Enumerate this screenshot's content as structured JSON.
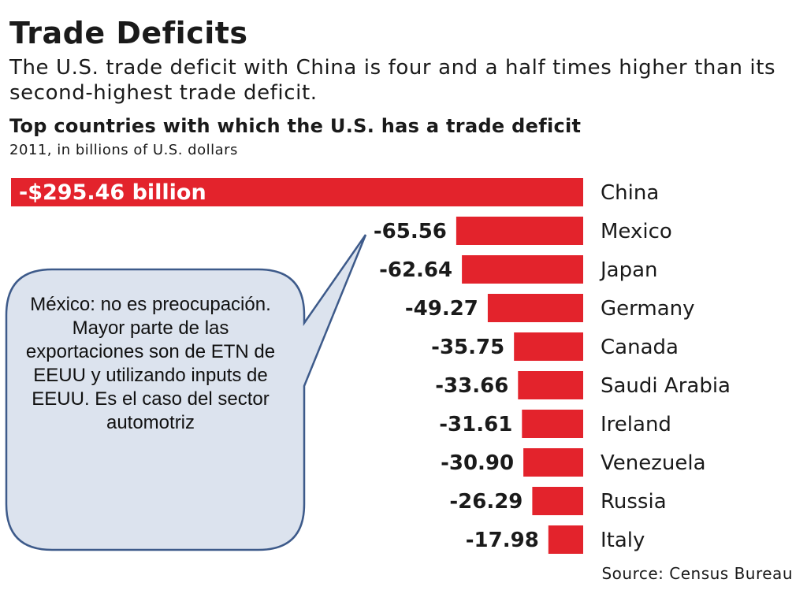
{
  "headline": "Trade Deficits",
  "subhead": "The U.S. trade deficit with China is four and a half times higher than its second-highest trade deficit.",
  "source": "Source: Census Bureau",
  "callout": {
    "text": "México: no es preocupación. Mayor parte de las exportaciones son de ETN de EEUU y utilizando inputs de EEUU. Es el caso del sector automotriz",
    "points_to": "Mexico"
  },
  "colors": {
    "bar": "#e3232c",
    "callout_fill": "#dce3ee",
    "callout_border": "#3d5a8a",
    "text": "#1a1a1a"
  },
  "chart_data": {
    "type": "bar",
    "orientation": "horizontal",
    "title": "Top countries with which the U.S. has a trade deficit",
    "subtitle": "2011, in billions of U.S. dollars",
    "categories": [
      "China",
      "Mexico",
      "Japan",
      "Germany",
      "Canada",
      "Saudi Arabia",
      "Ireland",
      "Venezuela",
      "Russia",
      "Italy"
    ],
    "values": [
      -295.46,
      -65.56,
      -62.64,
      -49.27,
      -35.75,
      -33.66,
      -31.61,
      -30.9,
      -26.29,
      -17.98
    ],
    "value_labels": [
      "-$295.46 billion",
      "-65.56",
      "-62.64",
      "-49.27",
      "-35.75",
      "-33.66",
      "-31.61",
      "-30.90",
      "-26.29",
      "-17.98"
    ],
    "grid": false,
    "legend": "none"
  }
}
